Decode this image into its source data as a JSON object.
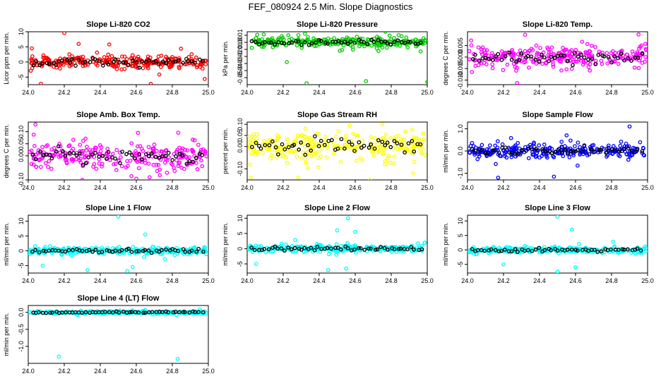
{
  "page_title": "FEF_080924  2.5 Min. Slope Diagnostics",
  "chart_data": [
    {
      "id": "co2",
      "type": "scatter",
      "title": "Slope Li-820 CO2",
      "ylabel": "Licor ppm per min.",
      "xlim": [
        24.0,
        25.0
      ],
      "ylim": [
        -7.5,
        10
      ],
      "xticks": [
        "24.0",
        "24.2",
        "24.4",
        "24.6",
        "24.8",
        "25.0"
      ],
      "yticks": [
        "-5",
        "0",
        "5",
        "10"
      ],
      "ytick_values": [
        -5,
        0,
        5,
        10
      ],
      "main_color": "#ff0000",
      "spread": 1.6,
      "extremes": [
        [
          24.2,
          9.6
        ],
        [
          24.07,
          -7.2
        ],
        [
          24.98,
          -5.6
        ],
        [
          24.02,
          4.5
        ],
        [
          24.45,
          5.8
        ],
        [
          24.28,
          6.0
        ]
      ]
    },
    {
      "id": "pressure",
      "type": "scatter",
      "title": "Slope Li-820 Pressure",
      "ylabel": "kPa per min.",
      "xlim": [
        24.0,
        25.0
      ],
      "ylim": [
        -0.06,
        0.015
      ],
      "xticks": [
        "24.0",
        "24.2",
        "24.4",
        "24.6",
        "24.8",
        "25.0"
      ],
      "yticks": [
        "-0.05",
        "-0.04",
        "-0.03",
        "-0.02",
        "-0.01",
        "0.00",
        "0.01"
      ],
      "ytick_values": [
        -0.05,
        -0.04,
        -0.03,
        -0.02,
        -0.01,
        0.0,
        0.01
      ],
      "main_color": "#00cc00",
      "spread": 0.006,
      "extremes": [
        [
          24.33,
          -0.058
        ],
        [
          24.66,
          -0.055
        ],
        [
          25.0,
          -0.056
        ],
        [
          24.22,
          -0.028
        ]
      ]
    },
    {
      "id": "temp",
      "type": "scatter",
      "title": "Slope Li-820 Temp.",
      "ylabel": "degrees C per min.",
      "xlim": [
        24.0,
        25.0
      ],
      "ylim": [
        -0.012,
        0.011
      ],
      "xticks": [
        "24.0",
        "24.2",
        "24.4",
        "24.6",
        "24.8",
        "25.0"
      ],
      "yticks": [
        "-0.010",
        "-0.005",
        "0.000",
        "0.005"
      ],
      "ytick_values": [
        -0.01,
        -0.005,
        0.0,
        0.005
      ],
      "main_color": "#ff00ff",
      "spread": 0.004,
      "extremes": [
        [
          24.32,
          0.0097
        ],
        [
          24.95,
          0.0098
        ],
        [
          24.02,
          0.0072
        ]
      ]
    },
    {
      "id": "boxtemp",
      "type": "scatter",
      "title": "Slope Amb. Box Temp.",
      "ylabel": "degrees C per min.",
      "xlim": [
        24.0,
        25.0
      ],
      "ylim": [
        -0.1,
        0.14
      ],
      "xticks": [
        "24.0",
        "24.2",
        "24.4",
        "24.6",
        "24.8",
        "25.0"
      ],
      "yticks": [
        "-0.10",
        "0.00",
        "0.05",
        "0.10"
      ],
      "ytick_values": [
        -0.1,
        0.0,
        0.05,
        0.1
      ],
      "main_color": "#ff00ff",
      "spread": 0.045,
      "extremes": [
        [
          24.04,
          0.13
        ],
        [
          24.3,
          -0.1
        ],
        [
          24.6,
          -0.095
        ]
      ]
    },
    {
      "id": "rh",
      "type": "scatter",
      "title": "Slope Gas Stream RH",
      "ylabel": "percent per min.",
      "xlim": [
        24.0,
        25.0
      ],
      "ylim": [
        -0.15,
        0.11
      ],
      "xticks": [
        "24.0",
        "24.2",
        "24.4",
        "24.6",
        "24.8",
        "25.0"
      ],
      "yticks": [
        "-0.10",
        "0.00",
        "0.05",
        "0.10"
      ],
      "ytick_values": [
        -0.1,
        0.0,
        0.05,
        0.1
      ],
      "main_color": "#ffff00",
      "spread": 0.05,
      "extremes": [
        [
          24.02,
          -0.14
        ],
        [
          24.75,
          0.1
        ],
        [
          24.92,
          -0.12
        ]
      ]
    },
    {
      "id": "sampleflow",
      "type": "scatter",
      "title": "Slope Sample Flow",
      "ylabel": "ml/min per min.",
      "xlim": [
        24.0,
        25.0
      ],
      "ylim": [
        -1.3,
        1.3
      ],
      "xticks": [
        "24.0",
        "24.2",
        "24.4",
        "24.6",
        "24.8",
        "25.0"
      ],
      "yticks": [
        "-1.0",
        "0.0",
        "1.0"
      ],
      "ytick_values": [
        -1.0,
        0.0,
        1.0
      ],
      "main_color": "#0000ff",
      "spread": 0.25,
      "extremes": [
        [
          24.17,
          -1.2
        ],
        [
          24.48,
          -1.15
        ],
        [
          24.9,
          1.1
        ],
        [
          24.55,
          0.7
        ]
      ]
    },
    {
      "id": "line1",
      "type": "scatter",
      "title": "Slope Line 1 Flow",
      "ylabel": "ml/min per min.",
      "xlim": [
        24.0,
        25.0
      ],
      "ylim": [
        -7.5,
        12
      ],
      "xticks": [
        "24.0",
        "24.2",
        "24.4",
        "24.6",
        "24.8",
        "25.0"
      ],
      "yticks": [
        "-5",
        "0",
        "5",
        "10"
      ],
      "ytick_values": [
        -5,
        0,
        5,
        10
      ],
      "main_color": "#00ffff",
      "spread": 0.9,
      "extremes": [
        [
          24.5,
          11.5
        ],
        [
          24.33,
          -6.5
        ],
        [
          24.55,
          -6.8
        ],
        [
          24.58,
          -5.5
        ],
        [
          24.65,
          5.5
        ],
        [
          24.08,
          -5.0
        ]
      ]
    },
    {
      "id": "line2",
      "type": "scatter",
      "title": "Slope Line 2 Flow",
      "ylabel": "ml/min per min.",
      "xlim": [
        24.0,
        25.0
      ],
      "ylim": [
        -8,
        11
      ],
      "xticks": [
        "24.0",
        "24.2",
        "24.4",
        "24.6",
        "24.8",
        "25.0"
      ],
      "yticks": [
        "-5",
        "0",
        "5",
        "10"
      ],
      "ytick_values": [
        -5,
        0,
        5,
        10
      ],
      "main_color": "#00ffff",
      "spread": 0.9,
      "extremes": [
        [
          24.56,
          10.0
        ],
        [
          24.5,
          6.0
        ],
        [
          24.6,
          5.5
        ],
        [
          24.45,
          -7.0
        ],
        [
          24.55,
          -6.5
        ],
        [
          24.05,
          -5.0
        ]
      ]
    },
    {
      "id": "line3",
      "type": "scatter",
      "title": "Slope Line 3 Flow",
      "ylabel": "ml/min per min.",
      "xlim": [
        24.0,
        25.0
      ],
      "ylim": [
        -8,
        12
      ],
      "xticks": [
        "24.0",
        "24.2",
        "24.4",
        "24.6",
        "24.8",
        "25.0"
      ],
      "yticks": [
        "-5",
        "0",
        "5",
        "10"
      ],
      "ytick_values": [
        -5,
        0,
        5,
        10
      ],
      "main_color": "#00ffff",
      "spread": 0.9,
      "extremes": [
        [
          24.5,
          11.5
        ],
        [
          24.58,
          7.0
        ],
        [
          24.5,
          -7.5
        ],
        [
          24.6,
          -6.0
        ],
        [
          24.2,
          -5.0
        ]
      ]
    },
    {
      "id": "line4",
      "type": "scatter",
      "title": "Slope Line 4 (LT) Flow",
      "ylabel": "ml/min per min.",
      "xlim": [
        24.0,
        25.0
      ],
      "ylim": [
        -1.5,
        0.2
      ],
      "xticks": [
        "24.0",
        "24.2",
        "24.4",
        "24.6",
        "24.8",
        "25.0"
      ],
      "yticks": [
        "-1.0",
        "-0.5",
        "0.0"
      ],
      "ytick_values": [
        -1.0,
        -0.5,
        0.0
      ],
      "main_color": "#00ffff",
      "spread": 0.03,
      "extremes": [
        [
          24.17,
          -1.3
        ],
        [
          24.83,
          -1.37
        ]
      ]
    }
  ]
}
